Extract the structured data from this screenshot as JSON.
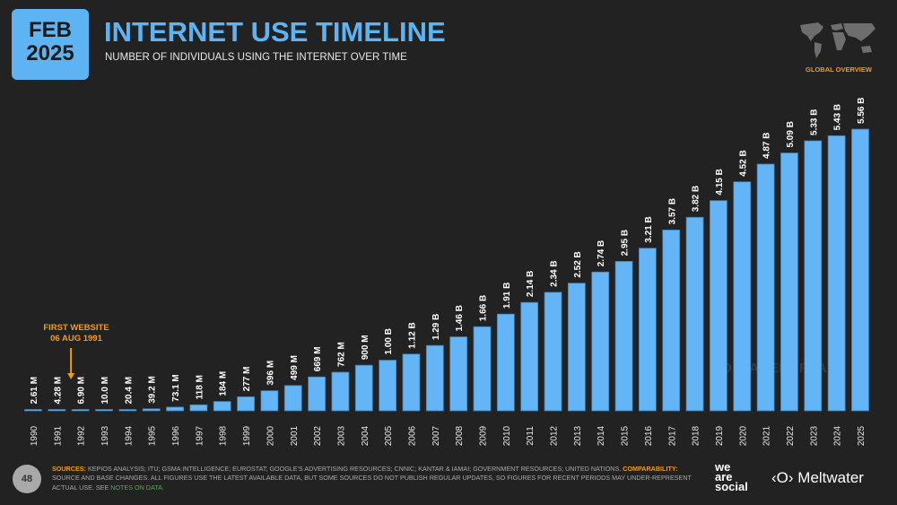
{
  "header": {
    "month": "FEB",
    "year": "2025",
    "title": "INTERNET USE TIMELINE",
    "subtitle": "NUMBER OF INDIVIDUALS USING THE INTERNET OVER TIME",
    "section_label": "GLOBAL OVERVIEW",
    "watermark": "DATAREPORTAL"
  },
  "annotation": {
    "line1": "FIRST WEBSITE",
    "line2": "06 AUG 1991"
  },
  "footer": {
    "page_number": "48",
    "sources_label": "SOURCES:",
    "sources_text": " KEPIOS ANALYSIS; ITU; GSMA INTELLIGENCE; EUROSTAT; GOOGLE'S ADVERTISING RESOURCES; CNNIC; KANTAR & IAMAI; GOVERNMENT RESOURCES; UNITED NATIONS. ",
    "comparability_label": "COMPARABILITY:",
    "comparability_text": " SOURCE AND BASE CHANGES. ALL FIGURES USE THE LATEST AVAILABLE DATA, BUT SOME SOURCES DO NOT PUBLISH REGULAR UPDATES, SO FIGURES FOR RECENT PERIODS MAY UNDER-REPRESENT ACTUAL USE. SEE ",
    "notes_link": "NOTES ON DATA.",
    "brand1": "we are social",
    "brand2": "Meltwater"
  },
  "colors": {
    "bar": "#64b5f6",
    "accent": "#f39c12",
    "title": "#5eb4f3",
    "background": "#222222"
  },
  "chart_data": {
    "type": "bar",
    "title": "INTERNET USE TIMELINE",
    "categories": [
      "1990",
      "1991",
      "1992",
      "1993",
      "1994",
      "1995",
      "1996",
      "1997",
      "1998",
      "1999",
      "2000",
      "2001",
      "2002",
      "2003",
      "2004",
      "2005",
      "2006",
      "2007",
      "2008",
      "2009",
      "2010",
      "2011",
      "2012",
      "2013",
      "2014",
      "2015",
      "2016",
      "2017",
      "2018",
      "2019",
      "2020",
      "2021",
      "2022",
      "2023",
      "2024",
      "2025"
    ],
    "values": [
      0.00261,
      0.00428,
      0.0069,
      0.01,
      0.0204,
      0.0392,
      0.0731,
      0.118,
      0.184,
      0.277,
      0.396,
      0.499,
      0.669,
      0.762,
      0.9,
      1.0,
      1.12,
      1.29,
      1.46,
      1.66,
      1.91,
      2.14,
      2.34,
      2.52,
      2.74,
      2.95,
      3.21,
      3.57,
      3.82,
      4.15,
      4.52,
      4.87,
      5.09,
      5.33,
      5.43,
      5.56
    ],
    "labels": [
      "2.61 M",
      "4.28 M",
      "6.90 M",
      "10.0 M",
      "20.4 M",
      "39.2 M",
      "73.1 M",
      "118 M",
      "184 M",
      "277 M",
      "396 M",
      "499 M",
      "669 M",
      "762 M",
      "900 M",
      "1.00 B",
      "1.12 B",
      "1.29 B",
      "1.46 B",
      "1.66 B",
      "1.91 B",
      "2.14 B",
      "2.34 B",
      "2.52 B",
      "2.74 B",
      "2.95 B",
      "3.21 B",
      "3.57 B",
      "3.82 B",
      "4.15 B",
      "4.52 B",
      "4.87 B",
      "5.09 B",
      "5.33 B",
      "5.43 B",
      "5.56 B"
    ],
    "unit": "billions",
    "ylim": [
      0,
      5.56
    ],
    "grid": false,
    "legend": "none"
  }
}
